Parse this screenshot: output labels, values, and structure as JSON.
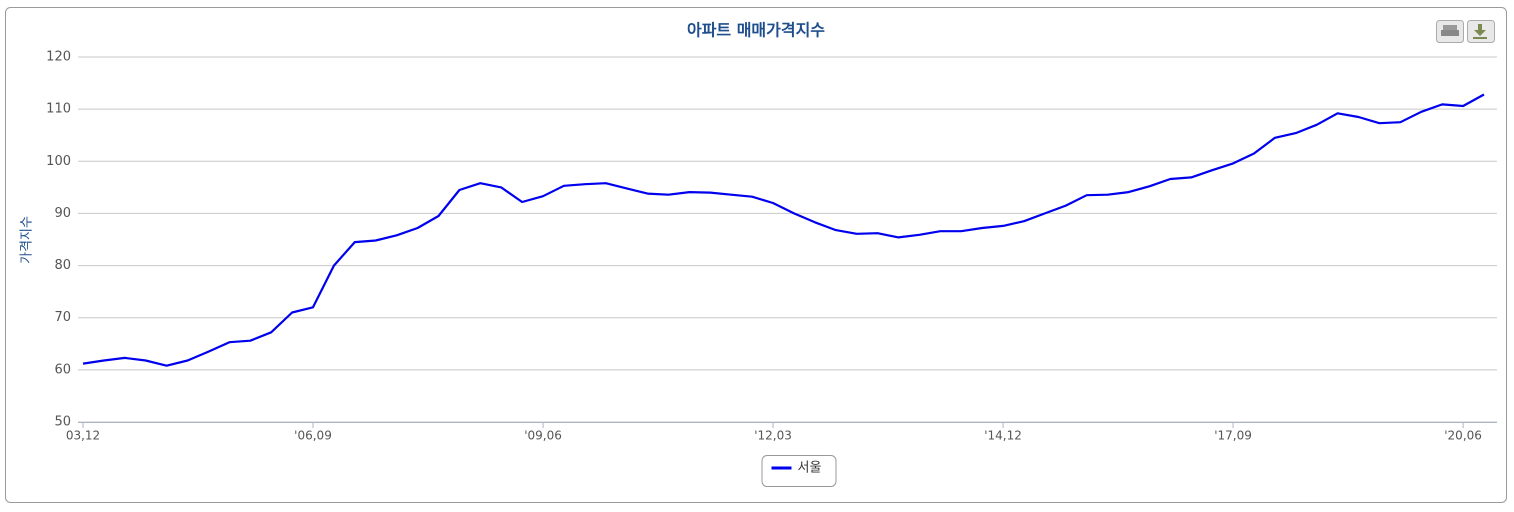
{
  "chart_data": {
    "type": "line",
    "title": "아파트 매매가격지수",
    "y_label": "가격지수",
    "categories": [
      "03,12",
      null,
      null,
      null,
      null,
      null,
      null,
      null,
      null,
      null,
      null,
      "'06,09",
      null,
      null,
      null,
      null,
      null,
      null,
      null,
      null,
      null,
      null,
      "'09,06",
      null,
      null,
      null,
      null,
      null,
      null,
      null,
      null,
      null,
      null,
      "'12,03",
      null,
      null,
      null,
      null,
      null,
      null,
      null,
      null,
      null,
      null,
      "'14,12",
      null,
      null,
      null,
      null,
      null,
      null,
      null,
      null,
      null,
      null,
      "'17,09",
      null,
      null,
      null,
      null,
      null,
      null,
      null,
      null,
      null,
      null,
      "'20,06",
      null
    ],
    "series": [
      {
        "name": "서울",
        "color": "#0000ee",
        "values": [
          61.2,
          61.8,
          62.3,
          61.8,
          60.8,
          61.8,
          63.5,
          65.3,
          65.6,
          67.2,
          71.0,
          72.0,
          80.0,
          84.5,
          84.8,
          85.8,
          87.2,
          89.5,
          94.5,
          95.8,
          95.0,
          92.2,
          93.3,
          95.3,
          95.6,
          95.8,
          94.8,
          93.8,
          93.6,
          94.1,
          94.0,
          93.6,
          93.2,
          92.0,
          90.0,
          88.3,
          86.8,
          86.1,
          86.2,
          85.4,
          85.9,
          86.6,
          86.6,
          87.2,
          87.6,
          88.5,
          90.0,
          91.5,
          93.5,
          93.6,
          94.1,
          95.2,
          96.6,
          96.9,
          98.3,
          99.6,
          101.5,
          104.5,
          105.4,
          107.0,
          109.2,
          108.5,
          107.3,
          107.5,
          109.5,
          110.9,
          110.6,
          112.8
        ]
      }
    ],
    "ylim": [
      50,
      120
    ],
    "yticks": [
      50,
      60,
      70,
      80,
      90,
      100,
      110,
      120
    ],
    "grid": true,
    "legend": "bottom"
  }
}
